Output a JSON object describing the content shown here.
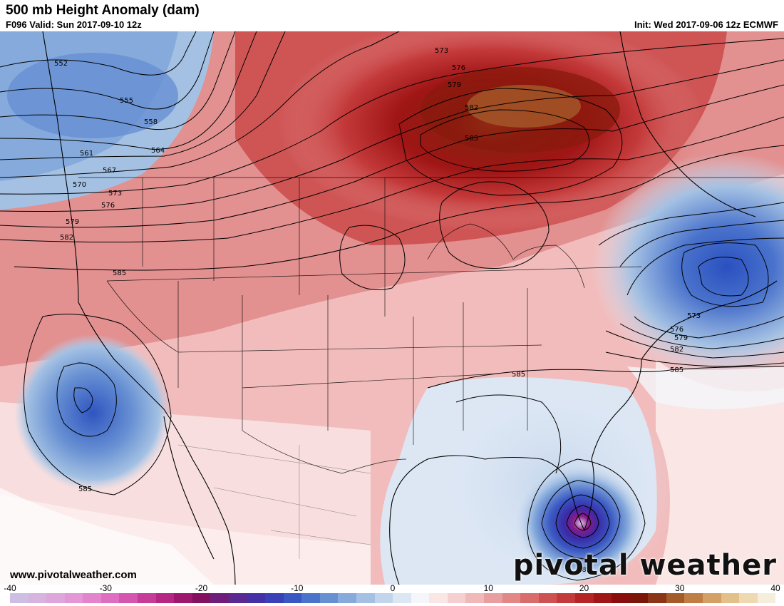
{
  "header": {
    "title": "500 mb Height Anomaly (dam)",
    "valid": "F096 Valid: Sun 2017-09-10 12z",
    "init": "Init: Wed 2017-09-06 12z ECMWF"
  },
  "footer": {
    "url": "www.pivotalweather.com",
    "brand": "pivotal weather"
  },
  "contour_labels": [
    "552",
    "555",
    "558",
    "561",
    "564",
    "567",
    "570",
    "573",
    "576",
    "579",
    "582",
    "585",
    "573",
    "576",
    "579",
    "582",
    "585",
    "573",
    "576",
    "579",
    "582",
    "585",
    "585",
    "585",
    "585"
  ],
  "colorbar": {
    "ticks": [
      "-40",
      "-30",
      "-20",
      "-10",
      "0",
      "10",
      "20",
      "30",
      "40"
    ],
    "min": -40,
    "max": 40,
    "colors": [
      "#cdbfe3",
      "#d7b3e0",
      "#dfa6dc",
      "#e497d6",
      "#e484cc",
      "#de6ec0",
      "#d456ae",
      "#c63d98",
      "#b52782",
      "#9c176d",
      "#84115f",
      "#6e1e7a",
      "#5a2a92",
      "#4531a6",
      "#3a40b6",
      "#3a58c2",
      "#4a73cc",
      "#6790d3",
      "#85aadb",
      "#a4c1e3",
      "#c2d5ec",
      "#dde7f4",
      "#f4f6fa",
      "#fbe6e6",
      "#f6d0d0",
      "#f0b8b8",
      "#e99f9f",
      "#e28686",
      "#d96c6c",
      "#cf5252",
      "#c43a3a",
      "#b52525",
      "#a01515",
      "#8a0d0d",
      "#7a1508",
      "#8a3515",
      "#a55a2a",
      "#c07d45",
      "#d5a066",
      "#e3bf8a",
      "#eed9b2",
      "#f5eedc"
    ]
  }
}
